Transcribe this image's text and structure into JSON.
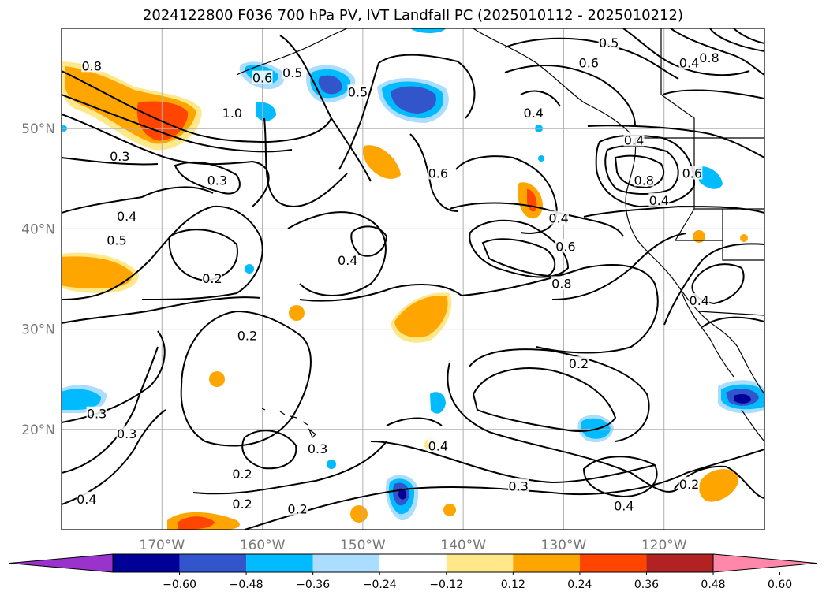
{
  "figure": {
    "title": "2024122800 F036 700 hPa PV, IVT Landfall PC (2025010112 - 2025010212)"
  },
  "map": {
    "projection": "lat-lon",
    "lon_range": [
      -180,
      -110
    ],
    "lat_range": [
      10,
      60
    ],
    "gridlines": true,
    "latitude_labels": [
      "50°N",
      "40°N",
      "30°N",
      "20°N"
    ],
    "latitude_values": [
      50,
      40,
      30,
      20
    ],
    "longitude_labels": [
      "170°W",
      "160°W",
      "150°W",
      "140°W",
      "130°W",
      "120°W"
    ],
    "longitude_values": [
      -170,
      -160,
      -150,
      -140,
      -130,
      -120
    ],
    "label_color": "#777777"
  },
  "contours": {
    "field": "700 hPa PV",
    "labels": [
      {
        "text": "0.8",
        "lon": -177,
        "lat": 56.2
      },
      {
        "text": "0.6",
        "lon": -160,
        "lat": 55.0
      },
      {
        "text": "0.5",
        "lon": -157,
        "lat": 55.5
      },
      {
        "text": "0.5",
        "lon": -150.5,
        "lat": 53.6
      },
      {
        "text": "1.0",
        "lon": -163,
        "lat": 51.5
      },
      {
        "text": "0.3",
        "lon": -174.2,
        "lat": 47.2
      },
      {
        "text": "0.3",
        "lon": -164.5,
        "lat": 44.8
      },
      {
        "text": "0.4",
        "lon": -173.5,
        "lat": 41.2
      },
      {
        "text": "0.5",
        "lon": -174.5,
        "lat": 38.8
      },
      {
        "text": "0.2",
        "lon": -165,
        "lat": 35.0
      },
      {
        "text": "0.2",
        "lon": -161.5,
        "lat": 29.3
      },
      {
        "text": "0.4",
        "lon": -151.5,
        "lat": 36.8
      },
      {
        "text": "0.6",
        "lon": -142.5,
        "lat": 45.5
      },
      {
        "text": "0.4",
        "lon": -130.5,
        "lat": 41.0
      },
      {
        "text": "0.6",
        "lon": -129.8,
        "lat": 38.2
      },
      {
        "text": "0.8",
        "lon": -130.2,
        "lat": 34.5
      },
      {
        "text": "0.2",
        "lon": -128.5,
        "lat": 26.5
      },
      {
        "text": "0.4",
        "lon": -133.0,
        "lat": 51.5
      },
      {
        "text": "0.6",
        "lon": -127.5,
        "lat": 56.5
      },
      {
        "text": "0.5",
        "lon": -125.5,
        "lat": 58.5
      },
      {
        "text": "0.4",
        "lon": -117.5,
        "lat": 56.5
      },
      {
        "text": "0.8",
        "lon": -115.5,
        "lat": 57.0
      },
      {
        "text": "0.4",
        "lon": -123.0,
        "lat": 48.8
      },
      {
        "text": "0.8",
        "lon": -122.0,
        "lat": 44.8
      },
      {
        "text": "0.6",
        "lon": -117.2,
        "lat": 45.5
      },
      {
        "text": "0.4",
        "lon": -120.5,
        "lat": 42.8
      },
      {
        "text": "0.4",
        "lon": -116.5,
        "lat": 32.8
      },
      {
        "text": "0.3",
        "lon": -154.5,
        "lat": 18.0
      },
      {
        "text": "0.2",
        "lon": -162.0,
        "lat": 15.5
      },
      {
        "text": "0.3",
        "lon": -176.5,
        "lat": 21.5
      },
      {
        "text": "0.3",
        "lon": -173.5,
        "lat": 19.5
      },
      {
        "text": "0.4",
        "lon": -142.5,
        "lat": 18.3
      },
      {
        "text": "0.3",
        "lon": -134.5,
        "lat": 14.3
      },
      {
        "text": "0.4",
        "lon": -124.0,
        "lat": 12.3
      },
      {
        "text": "0.2",
        "lon": -162.0,
        "lat": 12.5
      },
      {
        "text": "0.2",
        "lon": -156.5,
        "lat": 12.0
      },
      {
        "text": "0.2",
        "lon": -117.5,
        "lat": 14.5
      },
      {
        "text": "0.4",
        "lon": -177.5,
        "lat": 13.0
      }
    ]
  },
  "colorbar": {
    "ticks": [
      "−0.60",
      "−0.48",
      "−0.36",
      "−0.24",
      "−0.12",
      "0.12",
      "0.24",
      "0.36",
      "0.48",
      "0.60"
    ],
    "colors": [
      "#9933cc",
      "#000099",
      "#3355cc",
      "#00bbff",
      "#aaddff",
      "#ffffff",
      "#ffe88a",
      "#ffa500",
      "#ff4500",
      "#b22222",
      "#ff88aa"
    ]
  },
  "legend_colors": {
    "coast": "#000000",
    "grid": "#b0b0b0"
  }
}
